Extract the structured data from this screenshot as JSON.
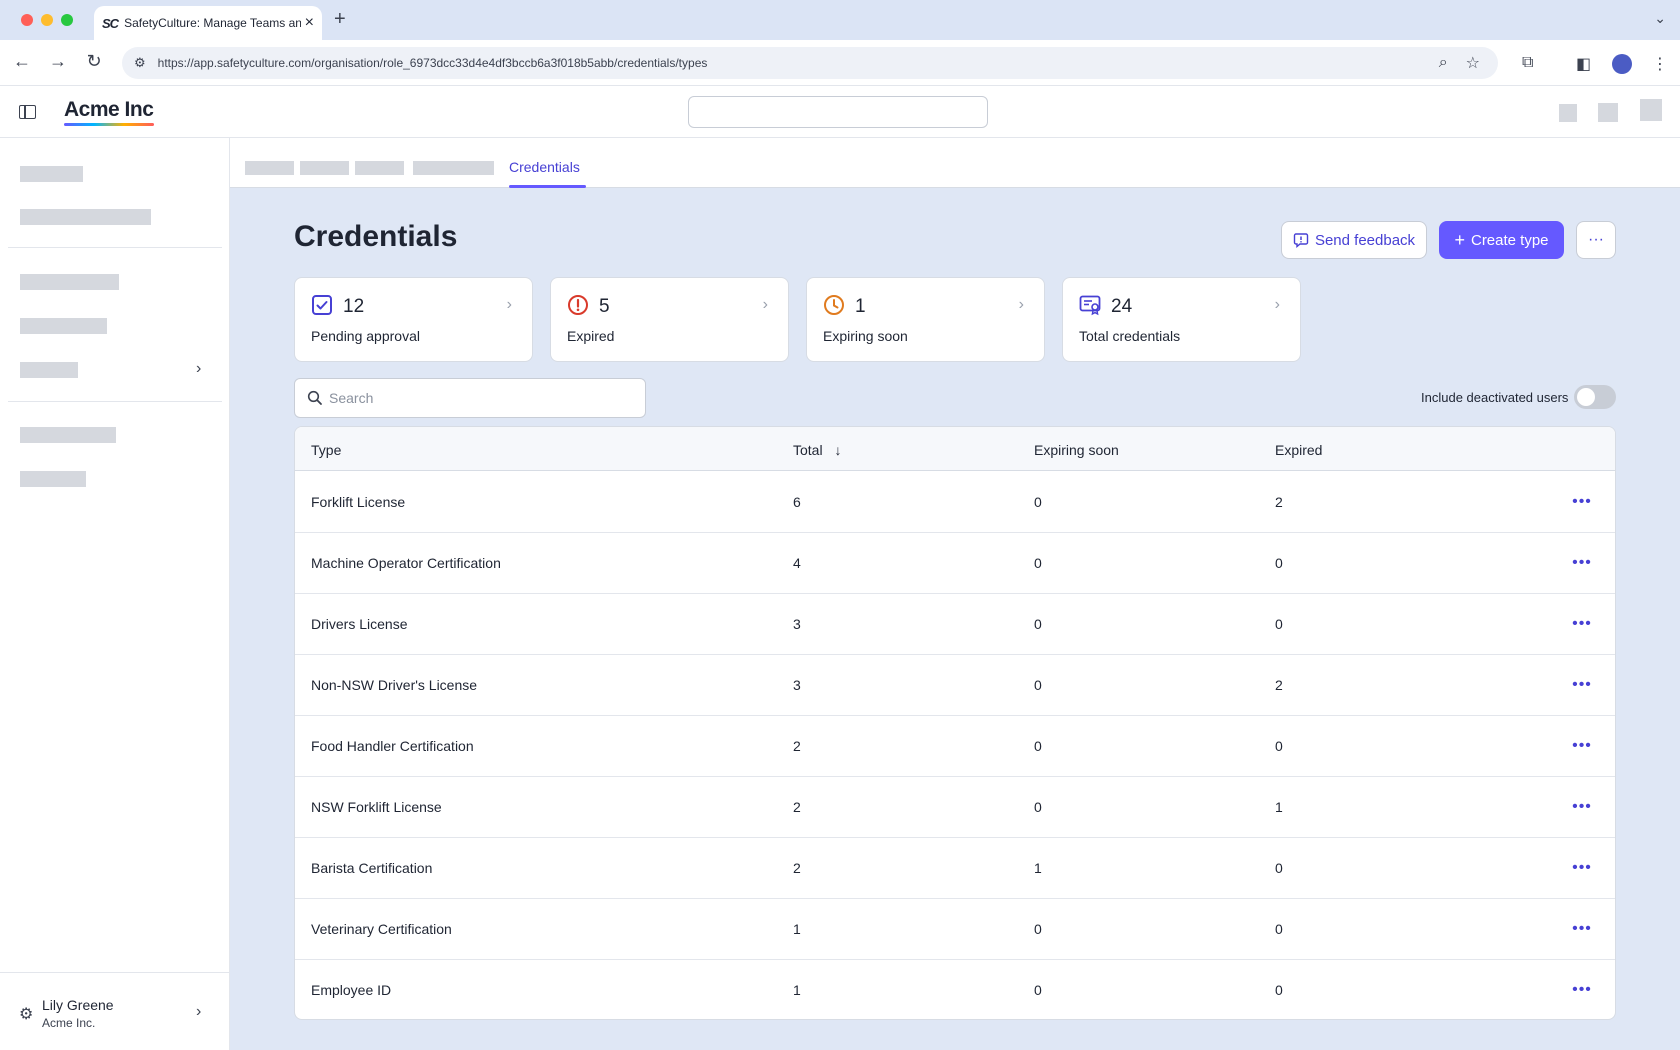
{
  "browser": {
    "tab_title": "SafetyCulture: Manage Teams and...",
    "tab_favicon": "SC",
    "url": "https://app.safetyculture.com/organisation/role_6973dcc33d4e4df3bccb6a3f018b5abb/credentials/types"
  },
  "header": {
    "logo": "Acme Inc"
  },
  "subnav": {
    "active_tab": "Credentials"
  },
  "page": {
    "title": "Credentials",
    "send_feedback_label": "Send feedback",
    "create_type_label": "Create type",
    "more_label": "···"
  },
  "stats": [
    {
      "value": "12",
      "label": "Pending approval",
      "icon": "check-square-icon",
      "color": "#4740d4"
    },
    {
      "value": "5",
      "label": "Expired",
      "icon": "alert-circle-icon",
      "color": "#d93a2b"
    },
    {
      "value": "1",
      "label": "Expiring soon",
      "icon": "clock-icon",
      "color": "#e07b1f"
    },
    {
      "value": "24",
      "label": "Total credentials",
      "icon": "certificate-icon",
      "color": "#4740d4"
    }
  ],
  "search": {
    "placeholder": "Search",
    "value": ""
  },
  "toggle": {
    "label": "Include deactivated users",
    "on": false
  },
  "table": {
    "headers": {
      "type": "Type",
      "total": "Total",
      "expiring": "Expiring soon",
      "expired": "Expired"
    },
    "sort_indicator": "↓",
    "rows": [
      {
        "type": "Forklift License",
        "total": "6",
        "expiring": "0",
        "expired": "2"
      },
      {
        "type": "Machine Operator Certification",
        "total": "4",
        "expiring": "0",
        "expired": "0"
      },
      {
        "type": "Drivers License",
        "total": "3",
        "expiring": "0",
        "expired": "0"
      },
      {
        "type": "Non-NSW Driver's License",
        "total": "3",
        "expiring": "0",
        "expired": "2"
      },
      {
        "type": "Food Handler Certification",
        "total": "2",
        "expiring": "0",
        "expired": "0"
      },
      {
        "type": "NSW Forklift License",
        "total": "2",
        "expiring": "0",
        "expired": "1"
      },
      {
        "type": "Barista Certification",
        "total": "2",
        "expiring": "1",
        "expired": "0"
      },
      {
        "type": "Veterinary Certification",
        "total": "1",
        "expiring": "0",
        "expired": "0"
      },
      {
        "type": "Employee ID",
        "total": "1",
        "expiring": "0",
        "expired": "0"
      }
    ]
  },
  "user": {
    "name": "Lily Greene",
    "org": "Acme Inc."
  },
  "colors": {
    "accent": "#6559ff",
    "accent_text": "#4740d4",
    "page_bg": "#dfe7f5"
  }
}
